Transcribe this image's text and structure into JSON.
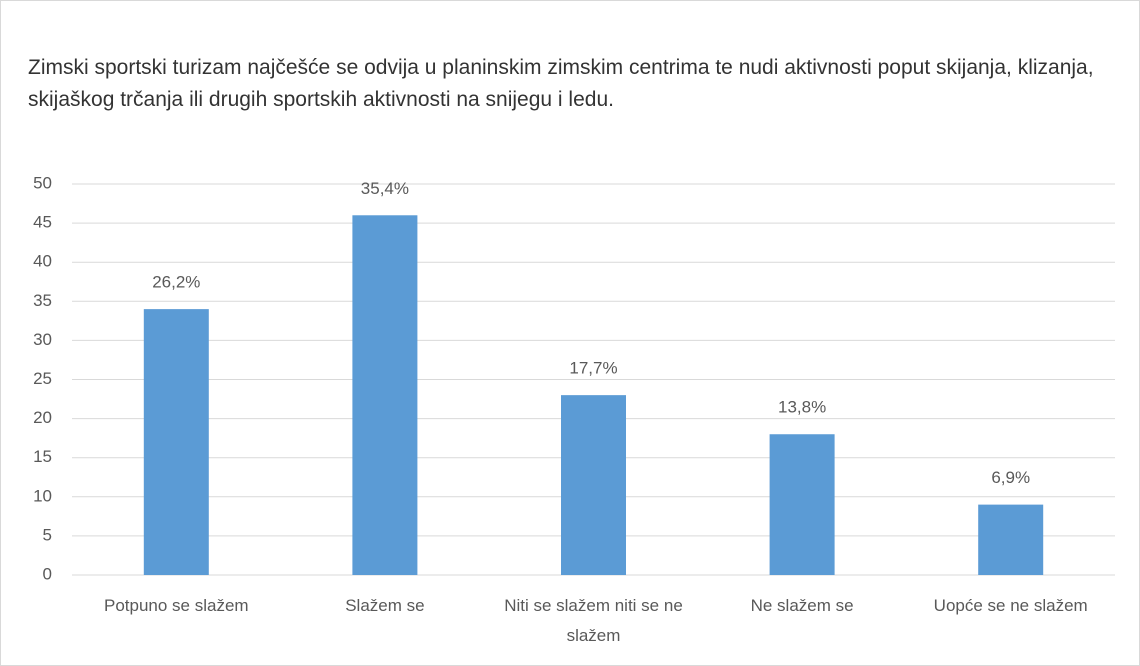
{
  "chart_data": {
    "type": "bar",
    "title": "Zimski sportski turizam najčešće se odvija u planinskim zimskim centrima te nudi aktivnosti poput skijanja, klizanja, skijaškog trčanja ili drugih sportskih aktivnosti na snijegu i ledu.",
    "categories": [
      "Potpuno se slažem",
      "Slažem se",
      "Niti se slažem niti se ne slažem",
      "Ne slažem se",
      "Uopće se ne slažem"
    ],
    "values": [
      34,
      46,
      23,
      18,
      9
    ],
    "annotations": [
      "26,2%",
      "35,4%",
      "17,7%",
      "13,8%",
      "6,9%"
    ],
    "color": "#5b9bd5",
    "ylim": [
      0,
      50
    ],
    "yticks": [
      0,
      5,
      10,
      15,
      20,
      25,
      30,
      35,
      40,
      45,
      50
    ],
    "grid": true
  }
}
